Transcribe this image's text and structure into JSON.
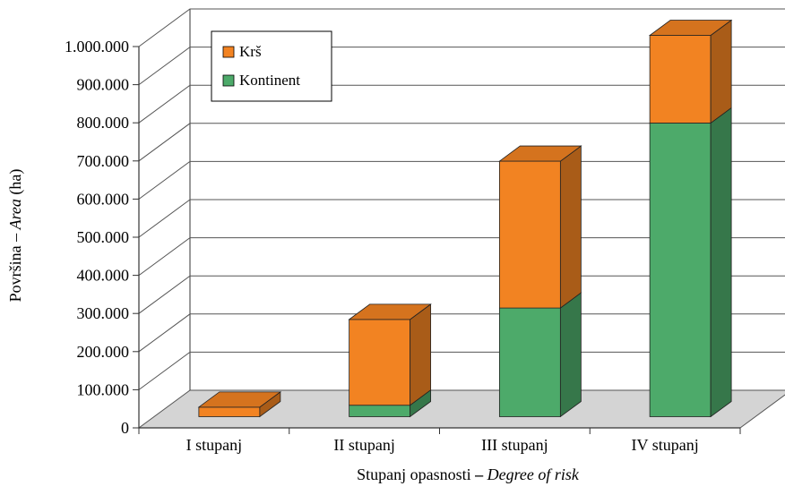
{
  "chart_data": {
    "type": "bar",
    "stacked": true,
    "three_d": true,
    "categories": [
      "I stupanj",
      "II stupanj",
      "III stupanj",
      "IV stupanj"
    ],
    "series": [
      {
        "name": "Kontinent",
        "color": "#4daa6a",
        "values": [
          0,
          30000,
          285000,
          770000
        ]
      },
      {
        "name": "Krš",
        "color": "#f28322",
        "values": [
          25000,
          225000,
          385000,
          230000
        ]
      }
    ],
    "ylabel": {
      "plain": "Površina – ",
      "italic": "Area",
      "unit": " (ha)"
    },
    "xlabel": {
      "plain": "Stupanj opasnosti ",
      "dash": "–",
      "italic": " Degree of risk"
    },
    "y_ticks": [
      "0",
      "100.000",
      "200.000",
      "300.000",
      "400.000",
      "500.000",
      "600.000",
      "700.000",
      "800.000",
      "900.000",
      "1.000.000"
    ],
    "ylim": [
      0,
      1000000
    ],
    "grid": true,
    "legend_position": "top-left"
  }
}
